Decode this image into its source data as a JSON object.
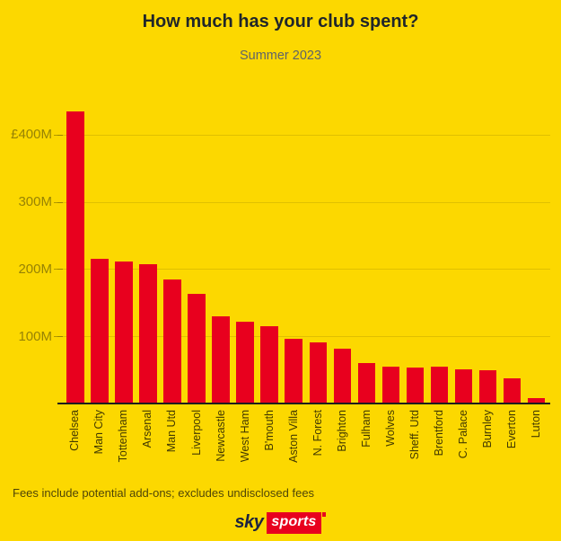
{
  "title": "How much has your club spent?",
  "subtitle": "Summer 2023",
  "footer_note": "Fees include potential add-ons; excludes undisclosed fees",
  "logo": {
    "sky": "sky",
    "sports": "sports"
  },
  "colors": {
    "background": "#FCD800",
    "bar": "#E8001E",
    "title_text": "#20262A",
    "logo_sky_navy": "#1C2340",
    "logo_sports_red": "#E8001E"
  },
  "chart_data": {
    "type": "bar",
    "title": "How much has your club spent?",
    "subtitle": "Summer 2023",
    "unit": "£M",
    "categories": [
      "Chelsea",
      "Man City",
      "Tottenham",
      "Arsenal",
      "Man Utd",
      "Liverpool",
      "Newcastle",
      "West Ham",
      "B'mouth",
      "Aston Villa",
      "N. Forest",
      "Brighton",
      "Fulham",
      "Wolves",
      "Sheff. Utd",
      "Brentford",
      "C. Palace",
      "Burnley",
      "Everton",
      "Luton"
    ],
    "values": [
      434,
      215,
      211,
      207,
      184,
      163,
      130,
      122,
      115,
      96,
      91,
      82,
      60,
      55,
      53,
      55,
      51,
      49,
      38,
      8
    ],
    "y_ticks": [
      {
        "label": "£400M",
        "value": 400
      },
      {
        "label": "300M",
        "value": 300
      },
      {
        "label": "200M",
        "value": 200
      },
      {
        "label": "100M",
        "value": 100
      }
    ],
    "ylim": [
      0,
      450
    ],
    "xlabel": "",
    "ylabel": "",
    "grid": true,
    "legend_position": "none"
  }
}
